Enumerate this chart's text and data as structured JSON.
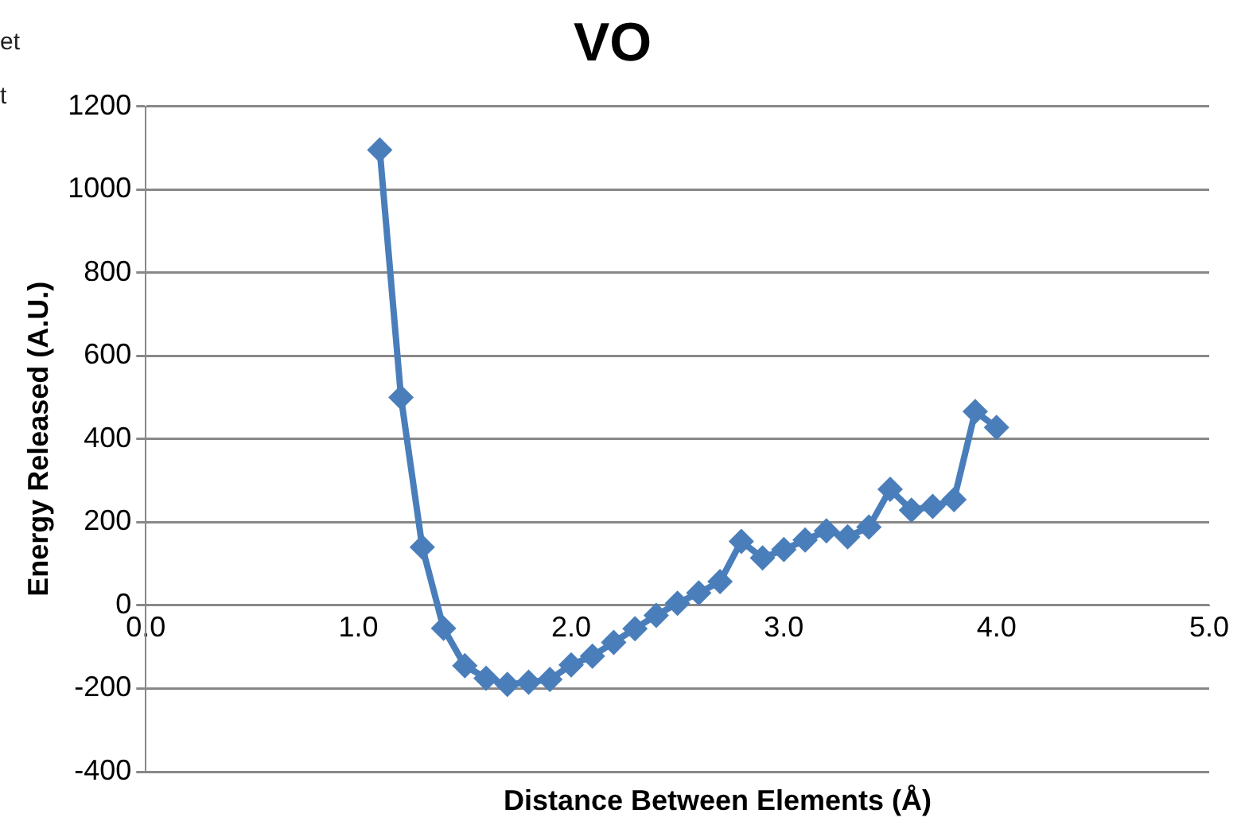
{
  "chart_data": {
    "type": "line",
    "title": "VO",
    "xlabel": "Distance Between Elements (Å)",
    "ylabel": "Energy Released (A.U.)",
    "annotations": [
      "et",
      "t"
    ],
    "x": [
      1.1,
      1.2,
      1.3,
      1.4,
      1.5,
      1.6,
      1.7,
      1.8,
      1.9,
      2.0,
      2.1,
      2.2,
      2.3,
      2.4,
      2.5,
      2.6,
      2.7,
      2.8,
      2.9,
      3.0,
      3.1,
      3.2,
      3.3,
      3.4,
      3.5,
      3.6,
      3.7,
      3.8,
      3.9,
      4.0
    ],
    "series": [
      {
        "color": "#4a7ebb",
        "values": [
          1095,
          500,
          140,
          -55,
          -145,
          -175,
          -190,
          -185,
          -178,
          -143,
          -122,
          -89,
          -56,
          -24,
          5,
          30,
          57,
          154,
          114,
          134,
          157,
          179,
          165,
          188,
          279,
          229,
          238,
          254,
          466,
          428
        ]
      }
    ],
    "xlim": [
      0,
      5
    ],
    "xticks": [
      {
        "value": 0,
        "label": "0.0"
      },
      {
        "value": 1,
        "label": "1.0"
      },
      {
        "value": 2,
        "label": "2.0"
      },
      {
        "value": 3,
        "label": "3.0"
      },
      {
        "value": 4,
        "label": "4.0"
      },
      {
        "value": 5,
        "label": "5.0"
      }
    ],
    "ylim": [
      -400,
      1200
    ],
    "yticks": [
      -400,
      -200,
      0,
      200,
      400,
      600,
      800,
      1000,
      1200
    ],
    "grid": "y",
    "legend": false,
    "marker": "diamond",
    "line_style": "solid"
  }
}
